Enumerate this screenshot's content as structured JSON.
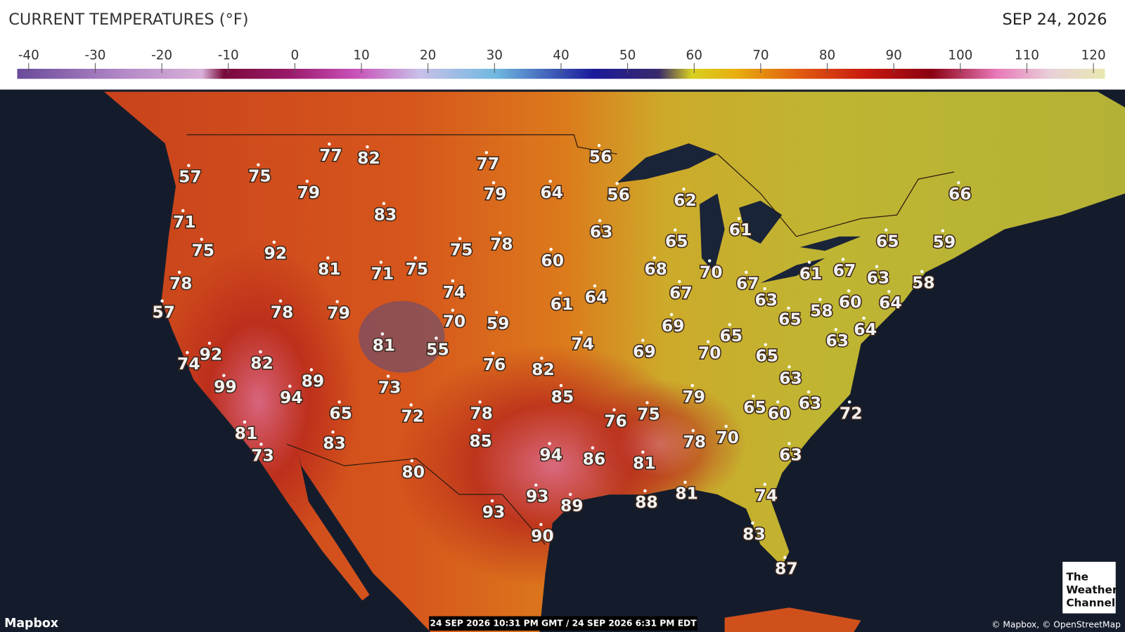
{
  "header": {
    "title": "CURRENT TEMPERATURES (°F)",
    "date": "SEP 24, 2026"
  },
  "legend": {
    "ticks": [
      -40,
      -30,
      -20,
      -10,
      0,
      10,
      20,
      30,
      40,
      50,
      60,
      70,
      80,
      90,
      100,
      110,
      120
    ]
  },
  "readings": [
    77,
    82,
    57,
    75,
    77,
    56,
    79,
    79,
    64,
    56,
    62,
    66,
    71,
    83,
    63,
    61,
    65,
    65,
    59,
    75,
    92,
    75,
    78,
    60,
    81,
    71,
    75,
    68,
    70,
    61,
    67,
    63,
    58,
    78,
    67,
    74,
    67,
    63,
    57,
    78,
    79,
    61,
    64,
    60,
    64,
    58,
    70,
    59,
    65,
    69,
    64,
    65,
    63,
    81,
    55,
    74,
    69,
    70,
    65,
    92,
    74,
    82,
    76,
    82,
    89,
    63,
    99,
    73,
    94,
    85,
    79,
    65,
    60,
    63,
    72,
    65,
    72,
    78,
    76,
    75,
    81,
    83,
    85,
    78,
    70,
    73,
    94,
    86,
    81,
    63,
    80,
    93,
    89,
    88,
    81,
    74,
    93,
    90,
    83,
    87
  ],
  "footer": {
    "provider": "Mapbox",
    "timestamp": "24 SEP 2026 10:31 PM GMT / 24 SEP 2026 6:31 PM EDT",
    "attribution": "© Mapbox, © OpenStreetMap",
    "logo": [
      "The",
      "Weather",
      "Channel"
    ]
  }
}
